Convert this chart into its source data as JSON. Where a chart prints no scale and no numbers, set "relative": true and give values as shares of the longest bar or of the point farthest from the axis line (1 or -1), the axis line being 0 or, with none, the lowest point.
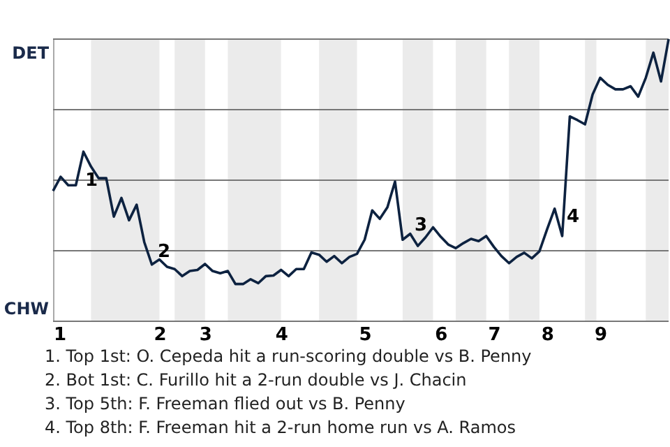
{
  "chart_data": {
    "type": "line",
    "relative": true,
    "categories": [
      "1",
      null,
      null,
      null,
      null,
      null,
      null,
      null,
      null,
      null,
      null,
      null,
      null,
      null,
      "2",
      null,
      null,
      null,
      null,
      null,
      "3",
      null,
      null,
      null,
      null,
      null,
      null,
      null,
      null,
      null,
      "4",
      null,
      null,
      null,
      null,
      null,
      null,
      null,
      null,
      null,
      null,
      "5",
      null,
      null,
      null,
      null,
      null,
      null,
      null,
      null,
      null,
      "6",
      null,
      null,
      null,
      null,
      null,
      null,
      "7",
      null,
      null,
      null,
      null,
      null,
      null,
      "8",
      null,
      null,
      null,
      null,
      null,
      null,
      "9",
      null,
      null,
      null,
      null,
      null,
      null,
      null,
      null,
      null
    ],
    "series": [
      {
        "color": "#0d2240",
        "values": [
          0.462,
          0.512,
          0.482,
          0.482,
          0.601,
          0.548,
          0.507,
          0.507,
          0.371,
          0.437,
          0.358,
          0.413,
          0.281,
          0.201,
          0.219,
          0.193,
          0.185,
          0.16,
          0.178,
          0.182,
          0.203,
          0.178,
          0.17,
          0.178,
          0.132,
          0.132,
          0.149,
          0.135,
          0.16,
          0.162,
          0.182,
          0.16,
          0.185,
          0.185,
          0.244,
          0.236,
          0.211,
          0.231,
          0.206,
          0.228,
          0.239,
          0.289,
          0.393,
          0.363,
          0.404,
          0.495,
          0.289,
          0.31,
          0.267,
          0.297,
          0.333,
          0.3,
          0.272,
          0.259,
          0.277,
          0.292,
          0.284,
          0.302,
          0.264,
          0.231,
          0.206,
          0.228,
          0.243,
          0.223,
          0.248,
          0.325,
          0.399,
          0.302,
          0.726,
          0.713,
          0.698,
          0.804,
          0.863,
          0.838,
          0.822,
          0.822,
          0.833,
          0.796,
          0.863,
          0.952,
          0.85,
          1.0
        ]
      }
    ],
    "ref_lines": [
      {
        "axis": "y",
        "value": 0.25,
        "color": "#777777"
      },
      {
        "axis": "y",
        "value": 0.5,
        "color": "#777777"
      },
      {
        "axis": "y",
        "value": 0.75,
        "color": "#777777"
      },
      {
        "axis": "y",
        "value": 1,
        "color": "#777777"
      }
    ],
    "annotations": [
      "DET",
      "CHW",
      "1",
      "2",
      "3",
      "4",
      "1. Top 1st: O. Cepeda hit a run-scoring double vs B. Penny",
      "2. Bot 1st: C. Furillo hit a 2-run double vs J. Chacin",
      "3. Top 5th: F. Freeman flied out vs B. Penny",
      "4. Top 8th: F. Freeman hit a 2-run home run vs A. Ramos"
    ]
  }
}
